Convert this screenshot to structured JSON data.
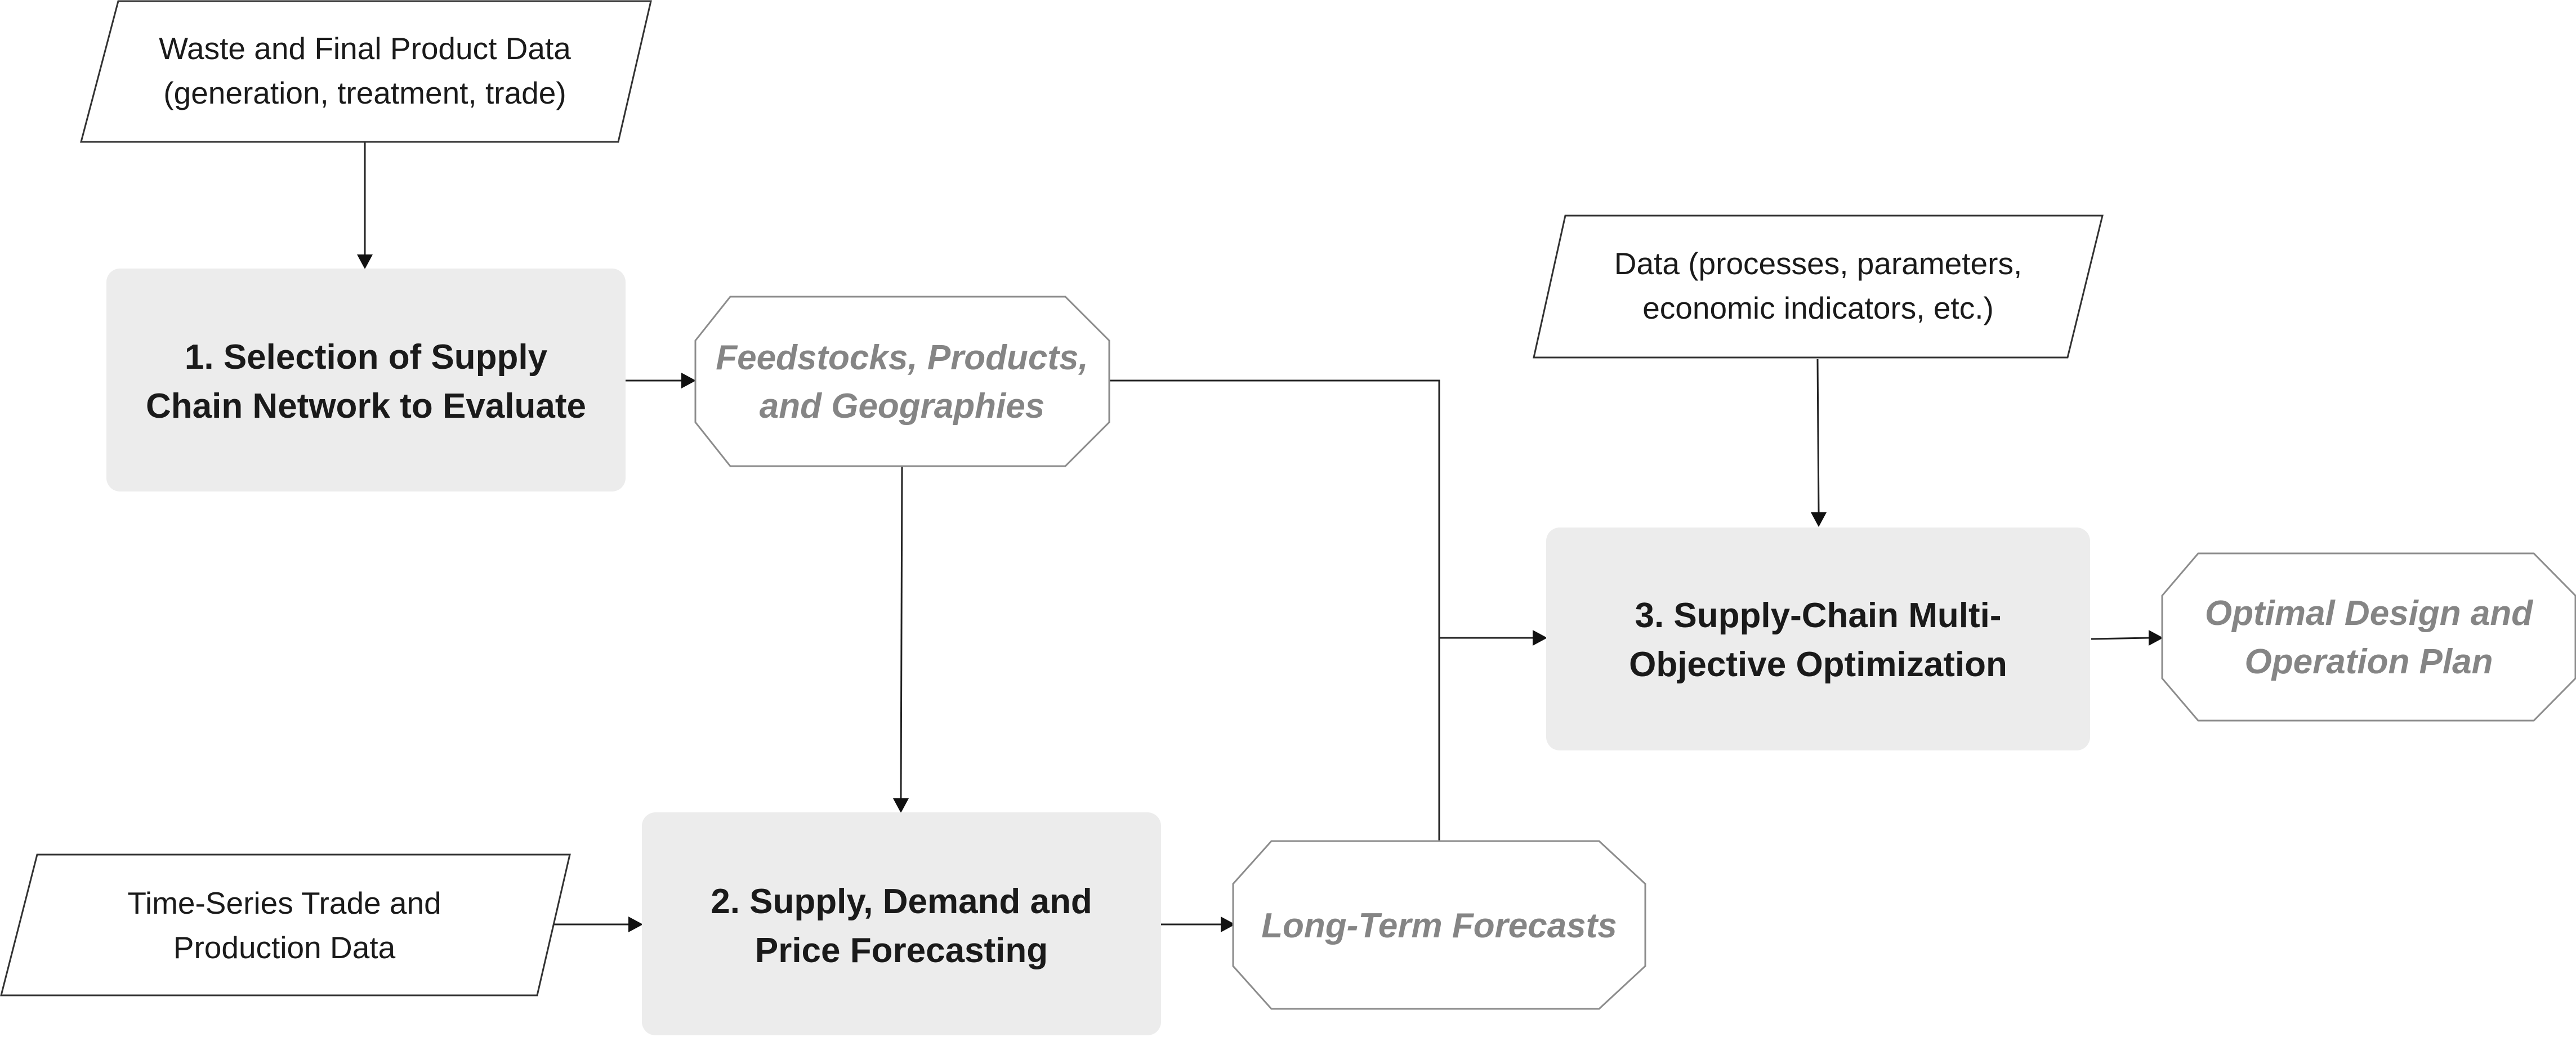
{
  "diagram": {
    "inputs": {
      "waste_data": [
        "Waste and Final Product Data",
        "(generation, treatment, trade)"
      ],
      "optimization_data": [
        "Data (processes, parameters,",
        "economic indicators, etc.)"
      ],
      "time_series_data": [
        "Time-Series Trade and",
        "Production Data"
      ]
    },
    "processes": {
      "selection": [
        "1. Selection of Supply",
        "Chain Network to Evaluate"
      ],
      "forecasting": [
        "2.  Supply, Demand and",
        "Price Forecasting"
      ],
      "optimization": [
        "3. Supply-Chain Multi-",
        "Objective Optimization"
      ]
    },
    "outputs": {
      "feedstocks": [
        "Feedstocks, Products,",
        "and Geographies"
      ],
      "forecasts": [
        "Long-Term Forecasts"
      ],
      "optimal_plan": [
        "Optimal Design and",
        "Operation Plan"
      ]
    }
  }
}
